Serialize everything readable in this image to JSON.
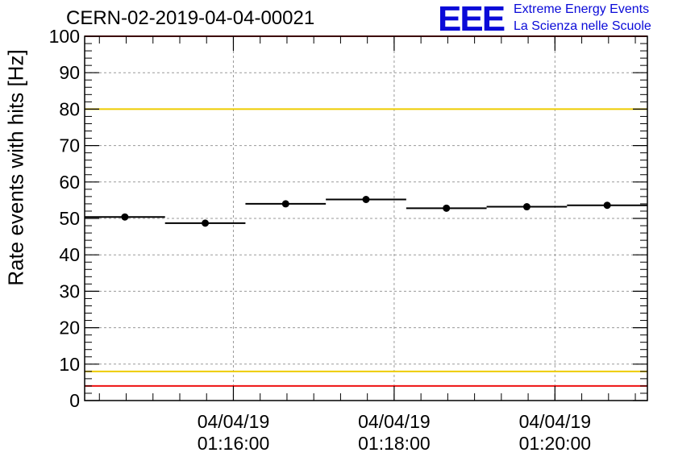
{
  "header": {
    "run_title": "CERN-02-2019-04-04-00021",
    "logo_mark": "EEE",
    "logo_line1": "Extreme Energy Events",
    "logo_line2": "La Scienza nelle Scuole"
  },
  "colors": {
    "logo_blue": "#0a0ad8",
    "red_limit": "#ee1111",
    "yellow_limit": "#eecc00",
    "data": "#000000",
    "grid": "#9a9a9a"
  },
  "chart_data": {
    "type": "scatter",
    "title": "CERN-02-2019-04-04-00021",
    "ylabel": "Rate events with hits [Hz]",
    "xlabel": "",
    "ylim": [
      0,
      100
    ],
    "yticks": [
      0,
      10,
      20,
      30,
      40,
      50,
      60,
      70,
      80,
      90,
      100
    ],
    "x_unit": "minutes after 01:00:00 on 04/04/19",
    "xlim": [
      14.15,
      21.15
    ],
    "xticks": [
      {
        "x": 16.0,
        "date": "04/04/19",
        "time": "01:16:00"
      },
      {
        "x": 18.0,
        "date": "04/04/19",
        "time": "01:18:00"
      },
      {
        "x": 20.0,
        "date": "04/04/19",
        "time": "01:20:00"
      }
    ],
    "grid": true,
    "series": [
      {
        "x": [
          14.65,
          15.65,
          16.65,
          17.65,
          18.65,
          19.65,
          20.65
        ],
        "xerr": 0.5,
        "y": [
          50.4,
          48.7,
          54.0,
          55.2,
          52.8,
          53.2,
          53.6
        ]
      }
    ],
    "reference_lines": [
      {
        "y": 100,
        "color": "red"
      },
      {
        "y": 80,
        "color": "yellow"
      },
      {
        "y": 8,
        "color": "yellow"
      },
      {
        "y": 4,
        "color": "red"
      }
    ]
  }
}
